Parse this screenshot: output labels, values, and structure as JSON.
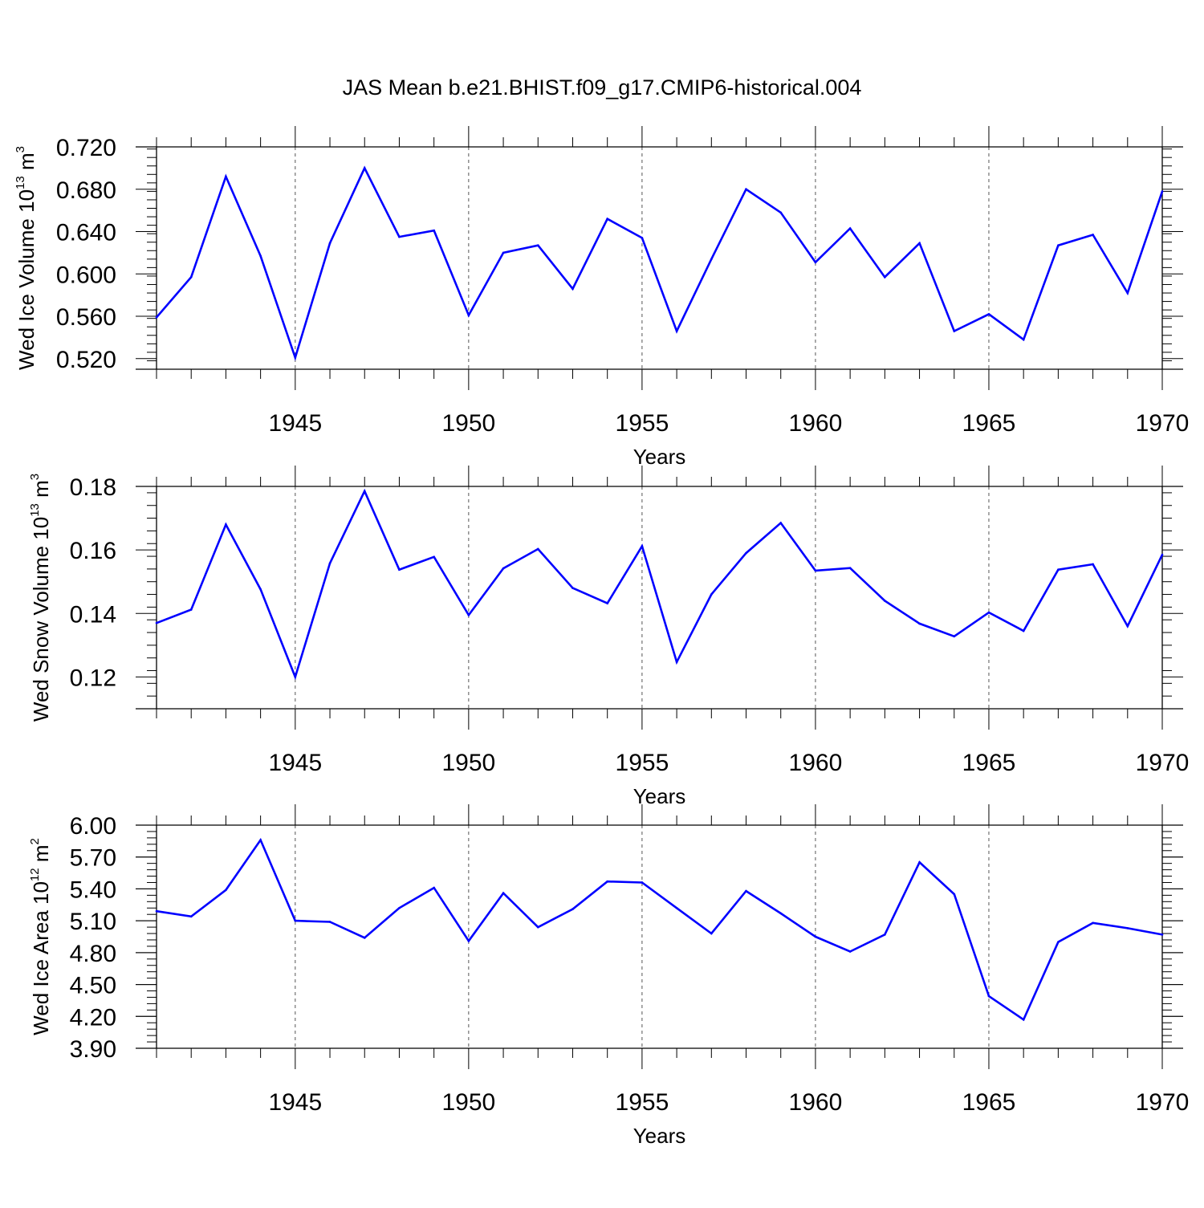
{
  "title": "JAS Mean b.e21.BHIST.f09_g17.CMIP6-historical.004",
  "colors": {
    "series": "#0000ff",
    "axis": "#000000",
    "grid": "#555555"
  },
  "chart_data": [
    {
      "type": "line",
      "ylabel": {
        "prefix": "Wed Ice Volume 10",
        "exp": "13",
        "unit": " m",
        "unit_exp": "3"
      },
      "xlabel": "Years",
      "xlim": [
        1941,
        1970
      ],
      "ylim": [
        0.51,
        0.72
      ],
      "ymajor": 0.04,
      "yminor": 0.008,
      "ydecimals": 3,
      "yticks": [
        0.52,
        0.56,
        0.6,
        0.64,
        0.68,
        0.72
      ],
      "ytick_labels": [
        "0.520",
        "0.560",
        "0.600",
        "0.640",
        "0.680",
        "0.720"
      ],
      "xticks": [
        1945,
        1950,
        1955,
        1960,
        1965,
        1970
      ],
      "xtick_labels": [
        "1945",
        "1950",
        "1955",
        "1960",
        "1965",
        "1970"
      ],
      "x": [
        1941,
        1942,
        1943,
        1944,
        1945,
        1946,
        1947,
        1948,
        1949,
        1950,
        1951,
        1952,
        1953,
        1954,
        1955,
        1956,
        1957,
        1958,
        1959,
        1960,
        1961,
        1962,
        1963,
        1964,
        1965,
        1966,
        1967,
        1968,
        1969,
        1970
      ],
      "values": [
        0.559,
        0.597,
        0.692,
        0.617,
        0.521,
        0.629,
        0.7,
        0.635,
        0.641,
        0.561,
        0.62,
        0.627,
        0.586,
        0.652,
        0.634,
        0.546,
        0.614,
        0.68,
        0.658,
        0.611,
        0.643,
        0.597,
        0.629,
        0.546,
        0.562,
        0.538,
        0.627,
        0.637,
        0.582,
        0.678
      ]
    },
    {
      "type": "line",
      "ylabel": {
        "prefix": "Wed Snow Volume 10",
        "exp": "13",
        "unit": " m",
        "unit_exp": "3"
      },
      "xlabel": "Years",
      "xlim": [
        1941,
        1970
      ],
      "ylim": [
        0.11,
        0.18
      ],
      "ymajor": 0.02,
      "yminor": 0.004,
      "ydecimals": 2,
      "yticks": [
        0.12,
        0.14,
        0.16,
        0.18
      ],
      "ytick_labels": [
        "0.12",
        "0.14",
        "0.16",
        "0.18"
      ],
      "xticks": [
        1945,
        1950,
        1955,
        1960,
        1965,
        1970
      ],
      "xtick_labels": [
        "1945",
        "1950",
        "1955",
        "1960",
        "1965",
        "1970"
      ],
      "x": [
        1941,
        1942,
        1943,
        1944,
        1945,
        1946,
        1947,
        1948,
        1949,
        1950,
        1951,
        1952,
        1953,
        1954,
        1955,
        1956,
        1957,
        1958,
        1959,
        1960,
        1961,
        1962,
        1963,
        1964,
        1965,
        1966,
        1967,
        1968,
        1969,
        1970
      ],
      "values": [
        0.137,
        0.1412,
        0.168,
        0.1476,
        0.12,
        0.1558,
        0.1785,
        0.1538,
        0.1578,
        0.1395,
        0.1542,
        0.1603,
        0.148,
        0.1432,
        0.1612,
        0.1247,
        0.146,
        0.159,
        0.1685,
        0.1535,
        0.1543,
        0.144,
        0.1368,
        0.1328,
        0.1403,
        0.1345,
        0.1538,
        0.1555,
        0.136,
        0.1585
      ]
    },
    {
      "type": "line",
      "ylabel": {
        "prefix": "Wed Ice Area 10",
        "exp": "12",
        "unit": " m",
        "unit_exp": "2"
      },
      "xlabel": "Years",
      "xlim": [
        1941,
        1970
      ],
      "ylim": [
        3.9,
        6.0
      ],
      "ymajor": 0.3,
      "yminor": 0.06,
      "ydecimals": 2,
      "yticks": [
        3.9,
        4.2,
        4.5,
        4.8,
        5.1,
        5.4,
        5.7,
        6.0
      ],
      "ytick_labels": [
        "3.90",
        "4.20",
        "4.50",
        "4.80",
        "5.10",
        "5.40",
        "5.70",
        "6.00"
      ],
      "xticks": [
        1945,
        1950,
        1955,
        1960,
        1965,
        1970
      ],
      "xtick_labels": [
        "1945",
        "1950",
        "1955",
        "1960",
        "1965",
        "1970"
      ],
      "x": [
        1941,
        1942,
        1943,
        1944,
        1945,
        1946,
        1947,
        1948,
        1949,
        1950,
        1951,
        1952,
        1953,
        1954,
        1955,
        1956,
        1957,
        1958,
        1959,
        1960,
        1961,
        1962,
        1963,
        1964,
        1965,
        1966,
        1967,
        1968,
        1969,
        1970
      ],
      "values": [
        5.19,
        5.14,
        5.39,
        5.86,
        5.1,
        5.09,
        4.94,
        5.22,
        5.41,
        4.91,
        5.36,
        5.04,
        5.21,
        5.47,
        5.46,
        5.22,
        4.98,
        5.38,
        5.17,
        4.95,
        4.81,
        4.97,
        5.65,
        5.35,
        4.39,
        4.17,
        4.9,
        5.08,
        5.03,
        4.97
      ]
    }
  ]
}
